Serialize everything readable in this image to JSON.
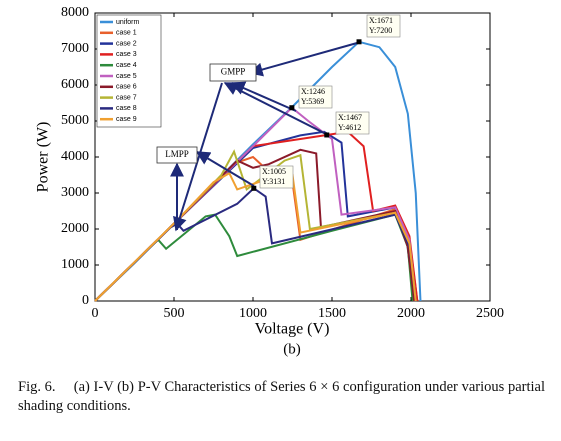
{
  "chart_data": {
    "type": "line",
    "xlabel": "Voltage (V)",
    "ylabel": "Power (W)",
    "sublabel": "(b)",
    "xlim": [
      0,
      2500
    ],
    "xticks": [
      0,
      500,
      1000,
      1500,
      2000,
      2500
    ],
    "ylim": [
      0,
      8000
    ],
    "yticks": [
      0,
      1000,
      2000,
      3000,
      4000,
      5000,
      6000,
      7000,
      8000
    ],
    "grid": false,
    "legend": "upper left",
    "series": [
      {
        "name": "uniform",
        "color": "#3a8fd8",
        "x": [
          0,
          250,
          500,
          750,
          1000,
          1250,
          1500,
          1671,
          1800,
          1900,
          1980,
          2030,
          2060
        ],
        "values": [
          0,
          1050,
          2150,
          3250,
          4350,
          5400,
          6500,
          7200,
          7050,
          6500,
          5200,
          3000,
          0
        ]
      },
      {
        "name": "case 1",
        "color": "#e8602c",
        "x": [
          0,
          500,
          900,
          1000,
          1050,
          1150,
          1250,
          1300,
          1900,
          1990,
          2040
        ],
        "values": [
          0,
          2150,
          3850,
          4000,
          3800,
          3400,
          3300,
          1700,
          2550,
          1700,
          0
        ]
      },
      {
        "name": "case 2",
        "color": "#23339a",
        "x": [
          0,
          500,
          1000,
          1300,
          1450,
          1560,
          1600,
          1900,
          1970,
          2020
        ],
        "values": [
          0,
          2150,
          4250,
          4600,
          4700,
          4400,
          2350,
          2600,
          1800,
          0
        ]
      },
      {
        "name": "case 3",
        "color": "#e02020",
        "x": [
          0,
          500,
          1000,
          1467,
          1600,
          1700,
          1760,
          1900,
          1990,
          2040
        ],
        "values": [
          0,
          2150,
          4300,
          4612,
          4700,
          4300,
          2500,
          2650,
          1800,
          0
        ]
      },
      {
        "name": "case 4",
        "color": "#2e8b3c",
        "x": [
          0,
          350,
          400,
          450,
          700,
          760,
          850,
          900,
          1500,
          1900,
          1980,
          2010
        ],
        "values": [
          0,
          1500,
          1700,
          1450,
          2350,
          2400,
          1800,
          1250,
          1950,
          2400,
          1500,
          0
        ]
      },
      {
        "name": "case 5",
        "color": "#c060c0",
        "x": [
          0,
          500,
          1000,
          1246,
          1350,
          1500,
          1560,
          1900,
          1990,
          2030
        ],
        "values": [
          0,
          2150,
          4300,
          5369,
          5000,
          4500,
          2400,
          2600,
          1700,
          0
        ]
      },
      {
        "name": "case 6",
        "color": "#8b1a2a",
        "x": [
          0,
          500,
          900,
          1000,
          1100,
          1300,
          1400,
          1430,
          1900,
          1980,
          2020
        ],
        "values": [
          0,
          2150,
          3900,
          3700,
          3800,
          4200,
          4100,
          2050,
          2500,
          1500,
          0
        ]
      },
      {
        "name": "case 7",
        "color": "#b5b535",
        "x": [
          0,
          500,
          800,
          880,
          960,
          1200,
          1300,
          1360,
          1900,
          1990,
          2030
        ],
        "values": [
          0,
          2150,
          3500,
          4150,
          3100,
          3900,
          4050,
          2000,
          2450,
          1600,
          0
        ]
      },
      {
        "name": "case 8",
        "color": "#2a2a80",
        "x": [
          0,
          480,
          520,
          560,
          900,
          1005,
          1080,
          1120,
          1900,
          1990,
          2030
        ],
        "values": [
          0,
          2050,
          2150,
          1950,
          2700,
          3131,
          2900,
          1600,
          2400,
          1500,
          0
        ]
      },
      {
        "name": "case 9",
        "color": "#f0a030",
        "x": [
          0,
          500,
          750,
          850,
          900,
          1100,
          1250,
          1300,
          1900,
          1990,
          2030
        ],
        "values": [
          0,
          2150,
          3300,
          3550,
          3100,
          3400,
          3500,
          1900,
          2450,
          1600,
          0
        ]
      }
    ],
    "annotations": [
      {
        "x": 1671,
        "y": 7200,
        "lines": [
          "X:1671",
          "Y:7200"
        ]
      },
      {
        "x": 1246,
        "y": 5369,
        "lines": [
          "X:1246",
          "Y:5369"
        ]
      },
      {
        "x": 1467,
        "y": 4612,
        "lines": [
          "X:1467",
          "Y:4612"
        ]
      },
      {
        "x": 1005,
        "y": 3131,
        "lines": [
          "X:1005",
          "Y:3131"
        ]
      }
    ],
    "callouts": [
      "GMPP",
      "LMPP"
    ]
  },
  "caption": "Fig. 6.  (a) I-V (b) P-V Characteristics of Series 6 × 6 configuration under various partial shading conditions."
}
